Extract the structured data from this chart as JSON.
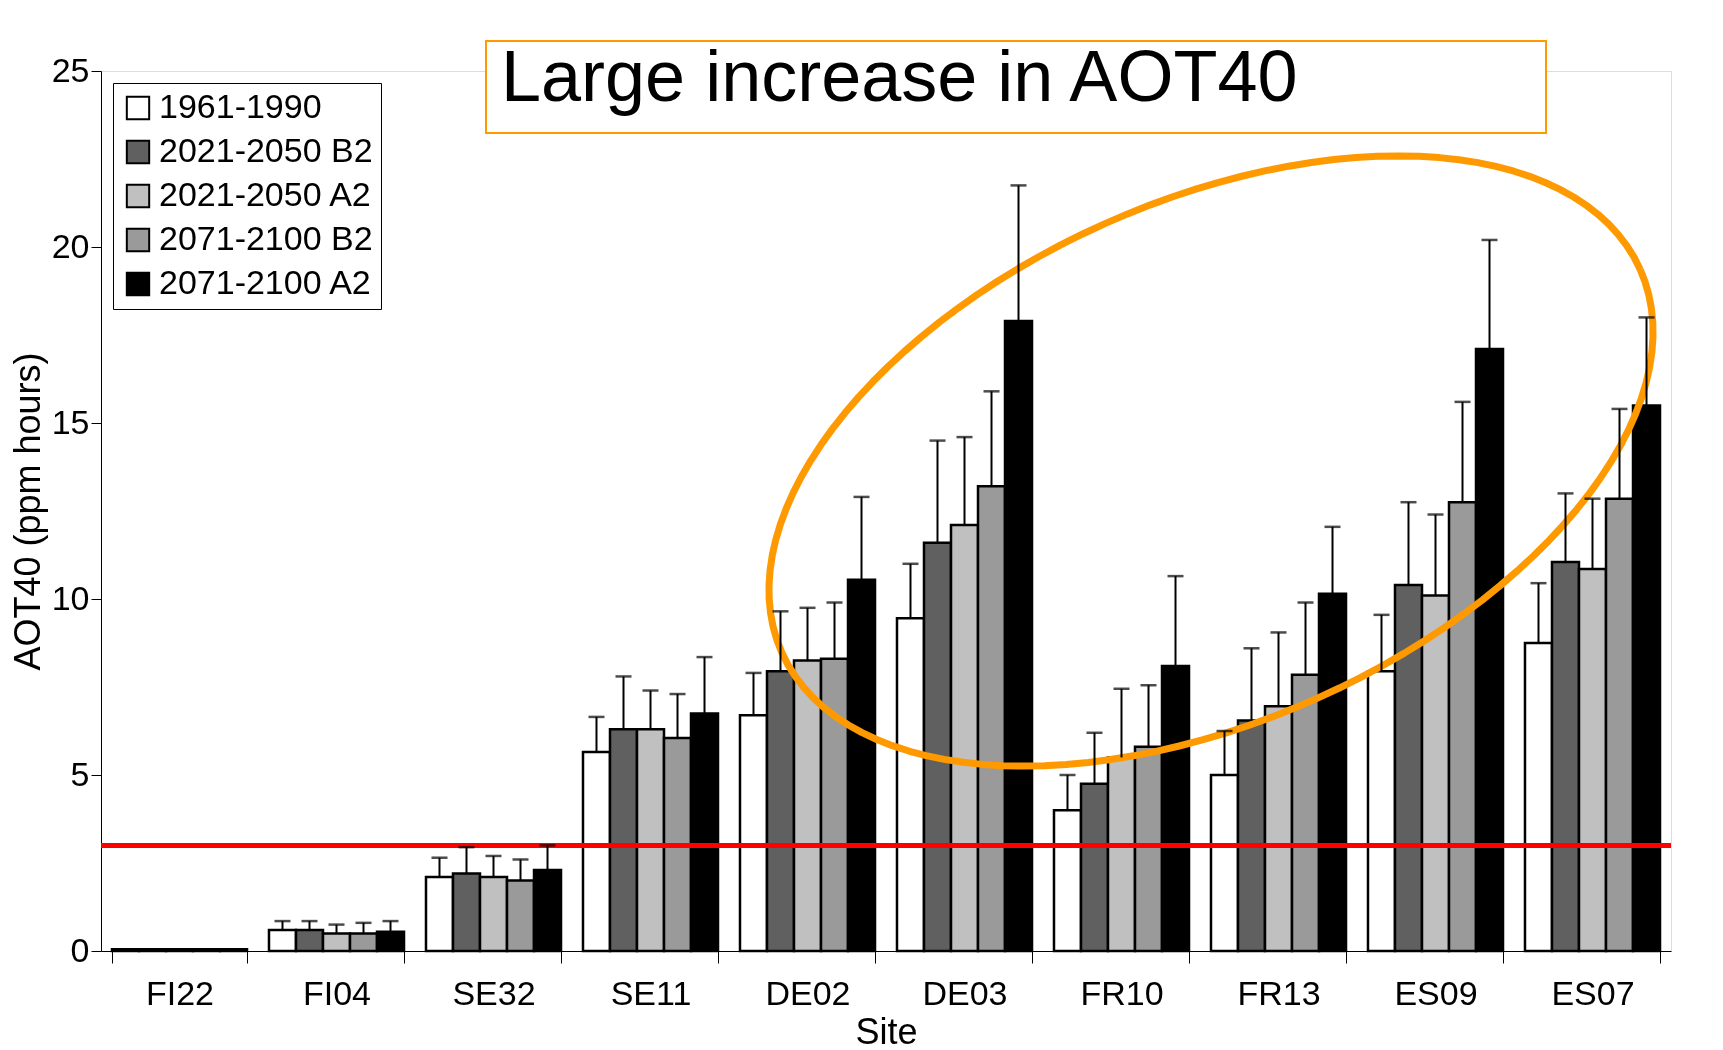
{
  "chart_data": {
    "type": "bar",
    "xlabel": "Site",
    "ylabel": "AOT40 (ppm hours)",
    "categories": [
      "FI22",
      "FI04",
      "SE32",
      "SE11",
      "DE02",
      "DE03",
      "FR10",
      "FR13",
      "ES09",
      "ES07"
    ],
    "series": [
      {
        "name": "1961-1990",
        "color": "#ffffff",
        "values": [
          0.05,
          0.6,
          2.1,
          5.65,
          6.7,
          9.45,
          4.0,
          5.0,
          7.95,
          8.75
        ],
        "errors": [
          null,
          [
            0.6,
            0.85
          ],
          [
            2.1,
            2.65
          ],
          [
            5.65,
            6.65
          ],
          [
            6.7,
            7.9
          ],
          [
            9.45,
            11.0
          ],
          [
            4.0,
            5.0
          ],
          [
            5.0,
            6.25
          ],
          [
            7.95,
            9.55
          ],
          [
            8.75,
            10.45
          ]
        ]
      },
      {
        "name": "2021-2050 B2",
        "color": "#606060",
        "values": [
          0.05,
          0.6,
          2.2,
          6.3,
          7.95,
          11.6,
          4.75,
          6.55,
          10.4,
          11.05
        ],
        "errors": [
          null,
          [
            0.6,
            0.85
          ],
          [
            2.2,
            2.95
          ],
          [
            6.3,
            7.8
          ],
          [
            7.95,
            9.65
          ],
          [
            11.6,
            14.5
          ],
          [
            4.75,
            6.2
          ],
          [
            6.55,
            8.6
          ],
          [
            10.4,
            12.75
          ],
          [
            11.05,
            13.0
          ]
        ]
      },
      {
        "name": "2021-2050 A2",
        "color": "#c0c0c0",
        "values": [
          0.05,
          0.5,
          2.1,
          6.3,
          8.25,
          12.1,
          5.5,
          6.95,
          10.1,
          10.85
        ],
        "errors": [
          null,
          [
            0.5,
            0.75
          ],
          [
            2.1,
            2.7
          ],
          [
            6.3,
            7.4
          ],
          [
            8.25,
            9.75
          ],
          [
            12.1,
            14.6
          ],
          [
            5.5,
            7.45
          ],
          [
            6.95,
            9.05
          ],
          [
            10.1,
            12.4
          ],
          [
            10.85,
            12.85
          ]
        ]
      },
      {
        "name": "2071-2100 B2",
        "color": "#9a9a9a",
        "values": [
          0.05,
          0.5,
          2.0,
          6.05,
          8.3,
          13.2,
          5.8,
          7.85,
          12.75,
          12.85
        ],
        "errors": [
          null,
          [
            0.5,
            0.8
          ],
          [
            2.0,
            2.6
          ],
          [
            6.05,
            7.3
          ],
          [
            8.3,
            9.9
          ],
          [
            13.2,
            15.9
          ],
          [
            5.8,
            7.55
          ],
          [
            7.85,
            9.9
          ],
          [
            12.75,
            15.6
          ],
          [
            12.85,
            15.4
          ]
        ]
      },
      {
        "name": "2071-2100 A2",
        "color": "#000000",
        "values": [
          0.05,
          0.55,
          2.3,
          6.75,
          10.55,
          17.9,
          8.1,
          10.15,
          17.1,
          15.5
        ],
        "errors": [
          null,
          [
            0.55,
            0.85
          ],
          [
            2.3,
            3.0
          ],
          [
            6.75,
            8.35
          ],
          [
            10.55,
            12.9
          ],
          [
            17.9,
            21.75
          ],
          [
            8.1,
            10.65
          ],
          [
            10.15,
            12.05
          ],
          [
            17.1,
            20.2
          ],
          [
            15.5,
            18.0
          ]
        ]
      }
    ],
    "ylim": [
      0,
      25
    ],
    "yticks": [
      0,
      5,
      10,
      15,
      20,
      25
    ],
    "grid": false,
    "legend": "top left",
    "ref_lines": [
      {
        "axis": "y",
        "value": 3,
        "color": "#ff0000"
      }
    ],
    "annotations": [
      "Large increase in AOT40"
    ]
  }
}
